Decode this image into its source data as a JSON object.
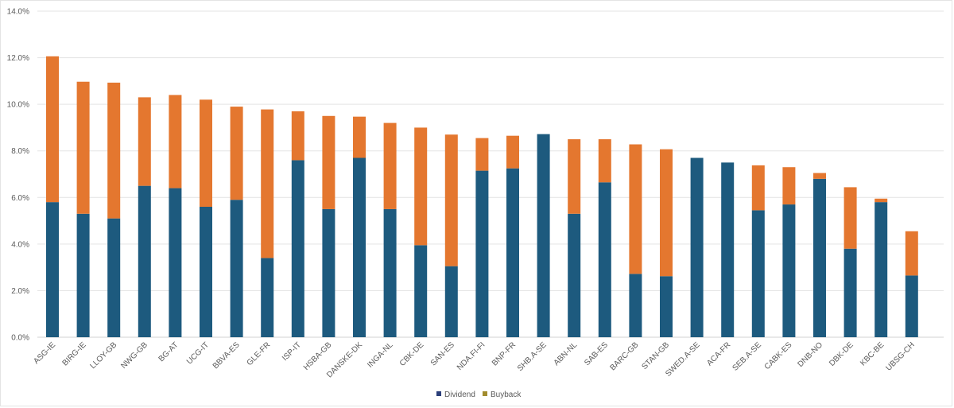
{
  "chart_data": {
    "type": "bar",
    "stacked": true,
    "title": "",
    "xlabel": "",
    "ylabel": "",
    "ylim": [
      0,
      14
    ],
    "yticks": [
      "0.0%",
      "2.0%",
      "4.0%",
      "6.0%",
      "8.0%",
      "10.0%",
      "12.0%",
      "14.0%"
    ],
    "ytick_values": [
      0,
      2,
      4,
      6,
      8,
      10,
      12,
      14
    ],
    "grid": true,
    "legend_position": "bottom",
    "categories": [
      "ASG-IE",
      "BIRG-IE",
      "LLOY-GB",
      "NWG-GB",
      "BG-AT",
      "UCG-IT",
      "BBVA-ES",
      "GLE-FR",
      "ISP-IT",
      "HSBA-GB",
      "DANSKE-DK",
      "INGA-NL",
      "CBK-DE",
      "SAN-ES",
      "NDA.FI-FI",
      "BNP-FR",
      "SHB.A-SE",
      "ABN-NL",
      "SAB-ES",
      "BARC-GB",
      "STAN-GB",
      "SWED.A-SE",
      "ACA-FR",
      "SEB.A-SE",
      "CABK-ES",
      "DNB-NO",
      "DBK-DE",
      "KBC-BE",
      "UBSG-CH"
    ],
    "series": [
      {
        "name": "Dividend",
        "color": "#1D5A7E",
        "legend_color": "#2B3F7A",
        "values": [
          5.8,
          5.3,
          5.1,
          6.5,
          6.4,
          5.6,
          5.9,
          3.4,
          7.6,
          5.5,
          7.7,
          5.5,
          3.95,
          3.05,
          7.15,
          7.25,
          8.72,
          5.3,
          6.65,
          2.72,
          2.62,
          7.7,
          7.5,
          5.45,
          5.7,
          6.8,
          3.8,
          5.8,
          2.65
        ]
      },
      {
        "name": "Buyback",
        "color": "#E4772F",
        "legend_color": "#A28C2E",
        "values": [
          6.26,
          5.67,
          5.83,
          3.8,
          4.0,
          4.6,
          4.0,
          6.38,
          2.1,
          4.0,
          1.77,
          3.7,
          5.05,
          5.65,
          1.4,
          1.4,
          0,
          3.2,
          1.85,
          5.56,
          5.45,
          0,
          0,
          1.93,
          1.6,
          0.25,
          2.64,
          0.15,
          1.9
        ]
      }
    ]
  }
}
